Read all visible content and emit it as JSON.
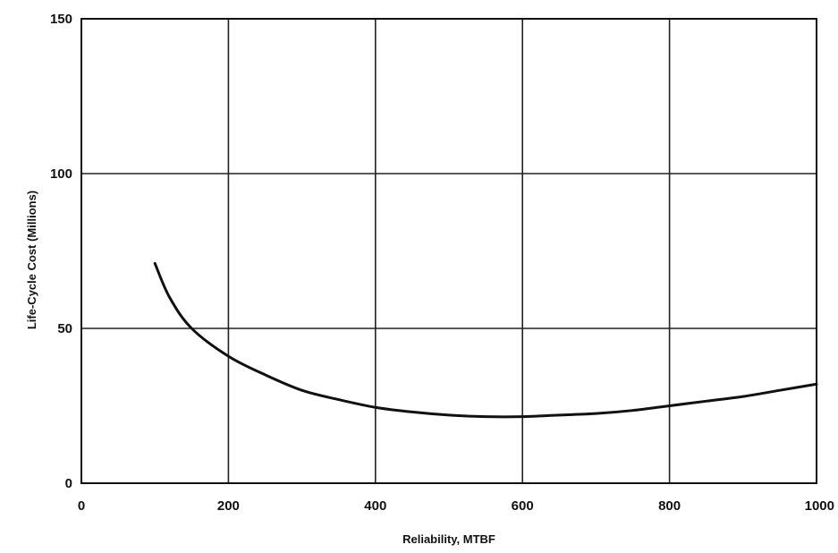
{
  "chart_data": {
    "type": "line",
    "title": "",
    "xlabel": "Reliability, MTBF",
    "ylabel": "Life-Cycle Cost (Millions)",
    "xlim": [
      0,
      1000
    ],
    "ylim": [
      0,
      150
    ],
    "x_ticks": [
      0,
      200,
      400,
      600,
      800,
      1000
    ],
    "y_ticks": [
      0,
      50,
      100,
      150
    ],
    "x_tick_labels": [
      "0",
      "200",
      "400",
      "600",
      "800",
      "1000"
    ],
    "y_tick_labels": [
      "0",
      "50",
      "100",
      "150"
    ],
    "grid": true,
    "line_color": "#111111",
    "series": [
      {
        "x": [
          100,
          120,
          150,
          200,
          250,
          300,
          350,
          400,
          450,
          500,
          550,
          600,
          650,
          700,
          750,
          800,
          850,
          900,
          950,
          1000
        ],
        "y": [
          71,
          60,
          50,
          41,
          35,
          30,
          27,
          24.5,
          23,
          22,
          21.5,
          21.5,
          22,
          22.5,
          23.5,
          25,
          26.5,
          28,
          30,
          32
        ]
      }
    ]
  }
}
